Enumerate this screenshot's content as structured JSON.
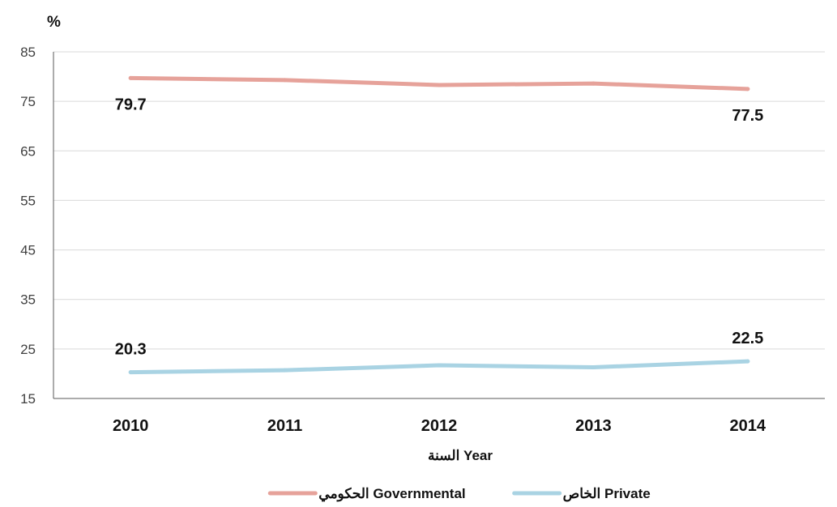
{
  "chart_data": {
    "type": "line",
    "unit_label": "%",
    "xlabel": "السنة Year",
    "categories": [
      "2010",
      "2011",
      "2012",
      "2013",
      "2014"
    ],
    "ylim": [
      15,
      85
    ],
    "yticks": [
      15,
      25,
      35,
      45,
      55,
      65,
      75,
      85
    ],
    "grid": "horizontal",
    "legend_position": "bottom",
    "series": [
      {
        "name": "الحكومي Governmental",
        "color": "#E6A29A",
        "values": [
          79.7,
          79.3,
          78.3,
          78.6,
          77.5
        ],
        "data_labels": [
          {
            "index": 0,
            "text": "79.7"
          },
          {
            "index": 4,
            "text": "77.5"
          }
        ]
      },
      {
        "name": "الخاص Private",
        "color": "#A9D3E3",
        "values": [
          20.3,
          20.7,
          21.7,
          21.3,
          22.5
        ],
        "data_labels": [
          {
            "index": 0,
            "text": "20.3"
          },
          {
            "index": 4,
            "text": "22.5"
          }
        ]
      }
    ]
  }
}
